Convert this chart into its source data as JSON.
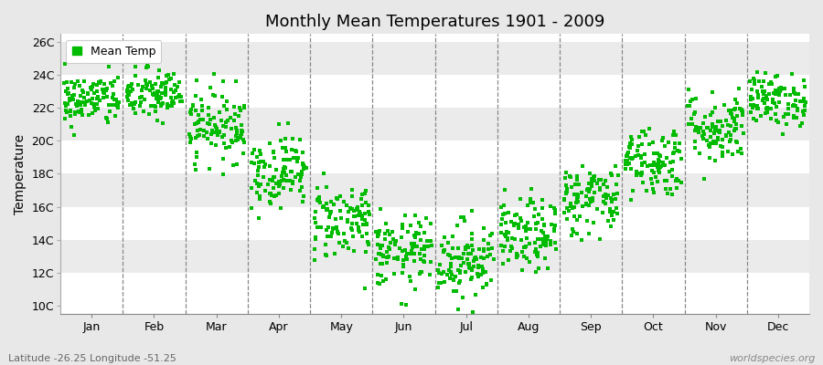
{
  "title": "Monthly Mean Temperatures 1901 - 2009",
  "ylabel": "Temperature",
  "subtitle_left": "Latitude -26.25 Longitude -51.25",
  "subtitle_right": "worldspecies.org",
  "legend_label": "Mean Temp",
  "dot_color": "#00bb00",
  "background_color": "#e8e8e8",
  "plot_bg_color": "#ffffff",
  "band_colors": [
    "#ffffff",
    "#ebebeb"
  ],
  "ylim": [
    9.5,
    26.5
  ],
  "ytick_labels": [
    "10C",
    "12C",
    "14C",
    "16C",
    "18C",
    "20C",
    "22C",
    "24C",
    "26C"
  ],
  "ytick_values": [
    10,
    12,
    14,
    16,
    18,
    20,
    22,
    24,
    26
  ],
  "months": [
    "Jan",
    "Feb",
    "Mar",
    "Apr",
    "May",
    "Jun",
    "Jul",
    "Aug",
    "Sep",
    "Oct",
    "Nov",
    "Dec"
  ],
  "month_means": [
    22.5,
    22.8,
    21.0,
    18.2,
    15.2,
    13.2,
    12.8,
    14.2,
    16.5,
    18.8,
    20.8,
    22.5
  ],
  "month_stds": [
    0.8,
    0.8,
    1.1,
    1.1,
    1.2,
    1.1,
    1.2,
    1.1,
    1.1,
    1.1,
    1.1,
    0.8
  ],
  "n_years": 109,
  "seed": 42
}
